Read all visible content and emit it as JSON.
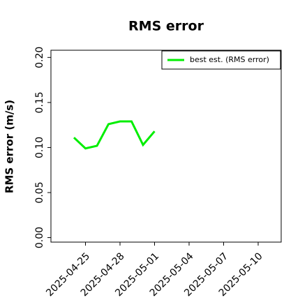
{
  "chart_data": {
    "type": "line",
    "title": "RMS error",
    "y_label": "RMS error (m/s)",
    "x": [
      "2025-04-24",
      "2025-04-25",
      "2025-04-26",
      "2025-04-27",
      "2025-04-28",
      "2025-04-29",
      "2025-04-30",
      "2025-05-01"
    ],
    "series": [
      {
        "name": "best est. (RMS error)",
        "color": "#00ee00",
        "values": [
          0.111,
          0.099,
          0.102,
          0.126,
          0.129,
          0.129,
          0.103,
          0.118
        ]
      }
    ],
    "xlim": [
      "2025-04-22",
      "2025-05-12"
    ],
    "xticks": [
      "2025-04-25",
      "2025-04-28",
      "2025-05-01",
      "2025-05-04",
      "2025-05-07",
      "2025-05-10"
    ],
    "ylim": [
      -0.005,
      0.208
    ],
    "yticks": [
      {
        "value": 0,
        "label": "0.00"
      },
      {
        "value": 0.05,
        "label": "0.05"
      },
      {
        "value": 0.1,
        "label": "0.10"
      },
      {
        "value": 0.15,
        "label": "0.15"
      },
      {
        "value": 0.2,
        "label": "0.20"
      }
    ],
    "highlight": {
      "x": "2025-05-01",
      "color": "#228b22"
    },
    "legend": "upper right"
  }
}
